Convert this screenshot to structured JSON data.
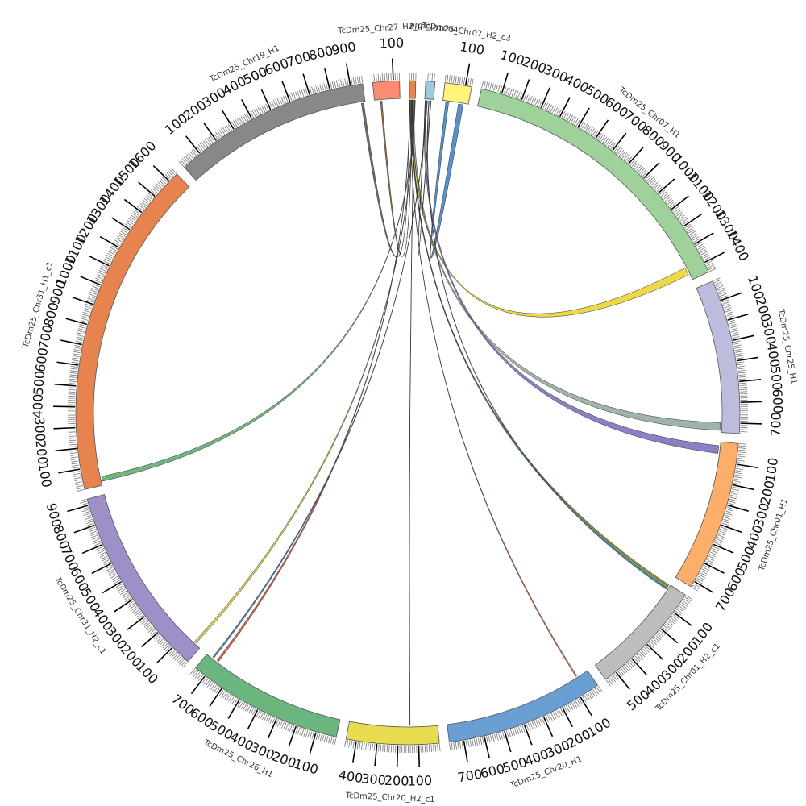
{
  "chart_data": {
    "type": "chord",
    "title": "",
    "tick_step": 100,
    "segments": [
      {
        "name": "PRFCI01004",
        "length": 30,
        "color": "#e6834e",
        "show_label": false
      },
      {
        "name": "PRFCI01004",
        "length": 45,
        "color": "#9ecae1",
        "show_label": true
      },
      {
        "name": "TcDm25_Chr07_H2_c3",
        "length": 130,
        "color": "#fff37a",
        "show_label": true
      },
      {
        "name": "TcDm25_Chr07_H1",
        "length": 1450,
        "color": "#9ed29a",
        "show_label": true
      },
      {
        "name": "TcDm25_Chr25_H1",
        "length": 750,
        "color": "#bcbddc",
        "show_label": true
      },
      {
        "name": "TcDm25_Chr01_H1",
        "length": 730,
        "color": "#fdae6b",
        "show_label": true
      },
      {
        "name": "TcDm25_Chr01_H2_c1",
        "length": 560,
        "color": "#bdbdbd",
        "show_label": true
      },
      {
        "name": "TcDm25_Chr20_H1",
        "length": 770,
        "color": "#6a9fd4",
        "show_label": true
      },
      {
        "name": "TcDm25_Chr20_H2_c1",
        "length": 450,
        "color": "#e8dc4e",
        "show_label": true
      },
      {
        "name": "TcDm25_Chr26_H1",
        "length": 760,
        "color": "#6bb57e",
        "show_label": true
      },
      {
        "name": "TcDm25_Chr31_H2_c1",
        "length": 930,
        "color": "#9e8fc8",
        "show_label": true
      },
      {
        "name": "TcDm25_Chr31_H1_c1",
        "length": 1650,
        "color": "#e6834e",
        "show_label": true
      },
      {
        "name": "TcDm25_Chr19_H1",
        "length": 960,
        "color": "#888888",
        "show_label": true
      },
      {
        "name": "TcDm25_Chr27_H2_c1",
        "length": 130,
        "color": "#fb8b72",
        "show_label": true
      }
    ],
    "links": [
      {
        "from": 2,
        "from_range": [
          15,
          30
        ],
        "to": 2,
        "to_range": [
          80,
          105
        ],
        "color": "#3a7fc1"
      },
      {
        "from": 0,
        "from_range": [
          6,
          16
        ],
        "to": 3,
        "to_range": [
          1380,
          1420
        ],
        "color": "#e8d22a"
      },
      {
        "from": 0,
        "from_range": [
          16,
          24
        ],
        "to": 4,
        "to_range": [
          700,
          740
        ],
        "color": "#8fa89a"
      },
      {
        "from": 1,
        "from_range": [
          2,
          10
        ],
        "to": 5,
        "to_range": [
          20,
          60
        ],
        "color": "#7868b8"
      },
      {
        "from": 0,
        "from_range": [
          9,
          12
        ],
        "to": 6,
        "to_range": [
          8,
          22
        ],
        "color": "#4fa24e"
      },
      {
        "from": 0,
        "from_range": [
          12,
          14
        ],
        "to": 6,
        "to_range": [
          3,
          10
        ],
        "color": "#c68a2d"
      },
      {
        "from": 1,
        "from_range": [
          20,
          23
        ],
        "to": 6,
        "to_range": [
          22,
          30
        ],
        "color": "#4a6fb8"
      },
      {
        "from": 0,
        "from_range": [
          4,
          6
        ],
        "to": 7,
        "to_range": [
          60,
          66
        ],
        "color": "#d35f2b"
      },
      {
        "from": 0,
        "from_range": [
          24,
          26
        ],
        "to": 8,
        "to_range": [
          140,
          144
        ],
        "color": "#444444"
      },
      {
        "from": 0,
        "from_range": [
          2,
          4
        ],
        "to": 9,
        "to_range": [
          690,
          700
        ],
        "color": "#c94a2c"
      },
      {
        "from": 1,
        "from_range": [
          12,
          14
        ],
        "to": 9,
        "to_range": [
          720,
          728
        ],
        "color": "#2a6f9a"
      },
      {
        "from": 0,
        "from_range": [
          26,
          28
        ],
        "to": 10,
        "to_range": [
          30,
          42
        ],
        "color": "#d2c43a"
      },
      {
        "from": 0,
        "from_range": [
          28,
          30
        ],
        "to": 11,
        "to_range": [
          20,
          45
        ],
        "color": "#5ba86a"
      },
      {
        "from": 0,
        "from_range": [
          0,
          2
        ],
        "to": 12,
        "to_range": [
          940,
          952
        ],
        "color": "#555555"
      },
      {
        "from": 0,
        "from_range": [
          14,
          16
        ],
        "to": 13,
        "to_range": [
          30,
          38
        ],
        "color": "#8a5a2a"
      },
      {
        "from": 1,
        "from_range": [
          30,
          33
        ],
        "to": 1,
        "to_range": [
          5,
          8
        ],
        "color": "#333333"
      }
    ]
  }
}
